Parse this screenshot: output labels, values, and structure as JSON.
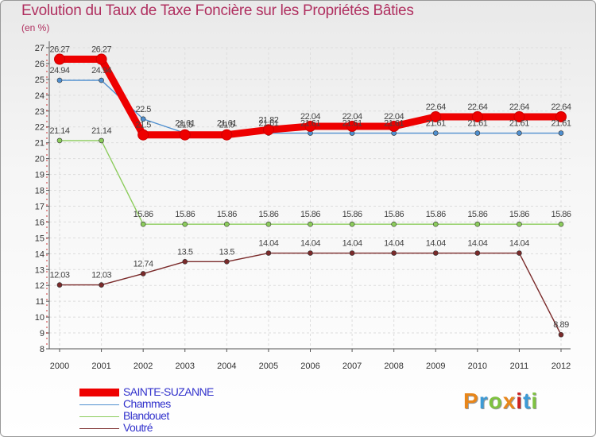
{
  "title": "Evolution du Taux de Taxe Foncière sur les Propriétés Bâties",
  "unit_label": "(en %)",
  "logo": {
    "letters": [
      "P",
      "r",
      "o",
      "x",
      "i",
      "t",
      "i"
    ],
    "colors": [
      "#e8861a",
      "#3d9bd6",
      "#7fc241",
      "#e8861a",
      "#cc2222",
      "#3d9bd6",
      "#7fc241"
    ]
  },
  "chart_data": {
    "type": "line",
    "title": "Evolution du Taux de Taxe Foncière sur les Propriétés Bâties",
    "ylabel": "(en %)",
    "xlabel": "",
    "x": [
      "2000",
      "2001",
      "2002",
      "2003",
      "2004",
      "2005",
      "2006",
      "2007",
      "2008",
      "2009",
      "2010",
      "2011",
      "2012"
    ],
    "ylim": [
      8,
      27
    ],
    "yticks": [
      8,
      9,
      10,
      11,
      12,
      13,
      14,
      15,
      16,
      17,
      18,
      19,
      20,
      21,
      22,
      23,
      24,
      25,
      26,
      27
    ],
    "legend_position": "bottom-left",
    "series": [
      {
        "name": "SAINTE-SUZANNE",
        "color": "#ee0000",
        "values": [
          26.27,
          26.27,
          21.5,
          21.5,
          21.5,
          21.82,
          22.04,
          22.04,
          22.04,
          22.64,
          22.64,
          22.64,
          22.64
        ],
        "labels": [
          "26.27",
          "26.27",
          "21.5",
          "21.5",
          "21.5",
          "21.82",
          "22.04",
          "22.04",
          "22.04",
          "22.64",
          "22.64",
          "22.64",
          "22.64"
        ]
      },
      {
        "name": "Chammes",
        "color": "#4f8fcf",
        "values": [
          24.94,
          24.94,
          22.5,
          21.61,
          21.61,
          21.61,
          21.61,
          21.61,
          21.61,
          21.61,
          21.61,
          21.61,
          21.61
        ],
        "labels": [
          "24.94",
          "24.94",
          "22.5",
          "21.61",
          "21.61",
          "21.61",
          "21.61",
          "21.61",
          "21.61",
          "21.61",
          "21.61",
          "21.61",
          "21.61"
        ]
      },
      {
        "name": "Blandouet",
        "color": "#8ccc5c",
        "values": [
          21.14,
          21.14,
          15.86,
          15.86,
          15.86,
          15.86,
          15.86,
          15.86,
          15.86,
          15.86,
          15.86,
          15.86,
          15.86
        ],
        "labels": [
          "21.14",
          "21.14",
          "15.86",
          "15.86",
          "15.86",
          "15.86",
          "15.86",
          "15.86",
          "15.86",
          "15.86",
          "15.86",
          "15.86",
          "15.86"
        ]
      },
      {
        "name": "Voutré",
        "color": "#7a2a2a",
        "values": [
          12.03,
          12.03,
          12.74,
          13.5,
          13.5,
          14.04,
          14.04,
          14.04,
          14.04,
          14.04,
          14.04,
          14.04,
          8.89
        ],
        "labels": [
          "12.03",
          "12.03",
          "12.74",
          "13.5",
          "13.5",
          "14.04",
          "14.04",
          "14.04",
          "14.04",
          "14.04",
          "14.04",
          "14.04",
          "8.89"
        ]
      }
    ]
  }
}
